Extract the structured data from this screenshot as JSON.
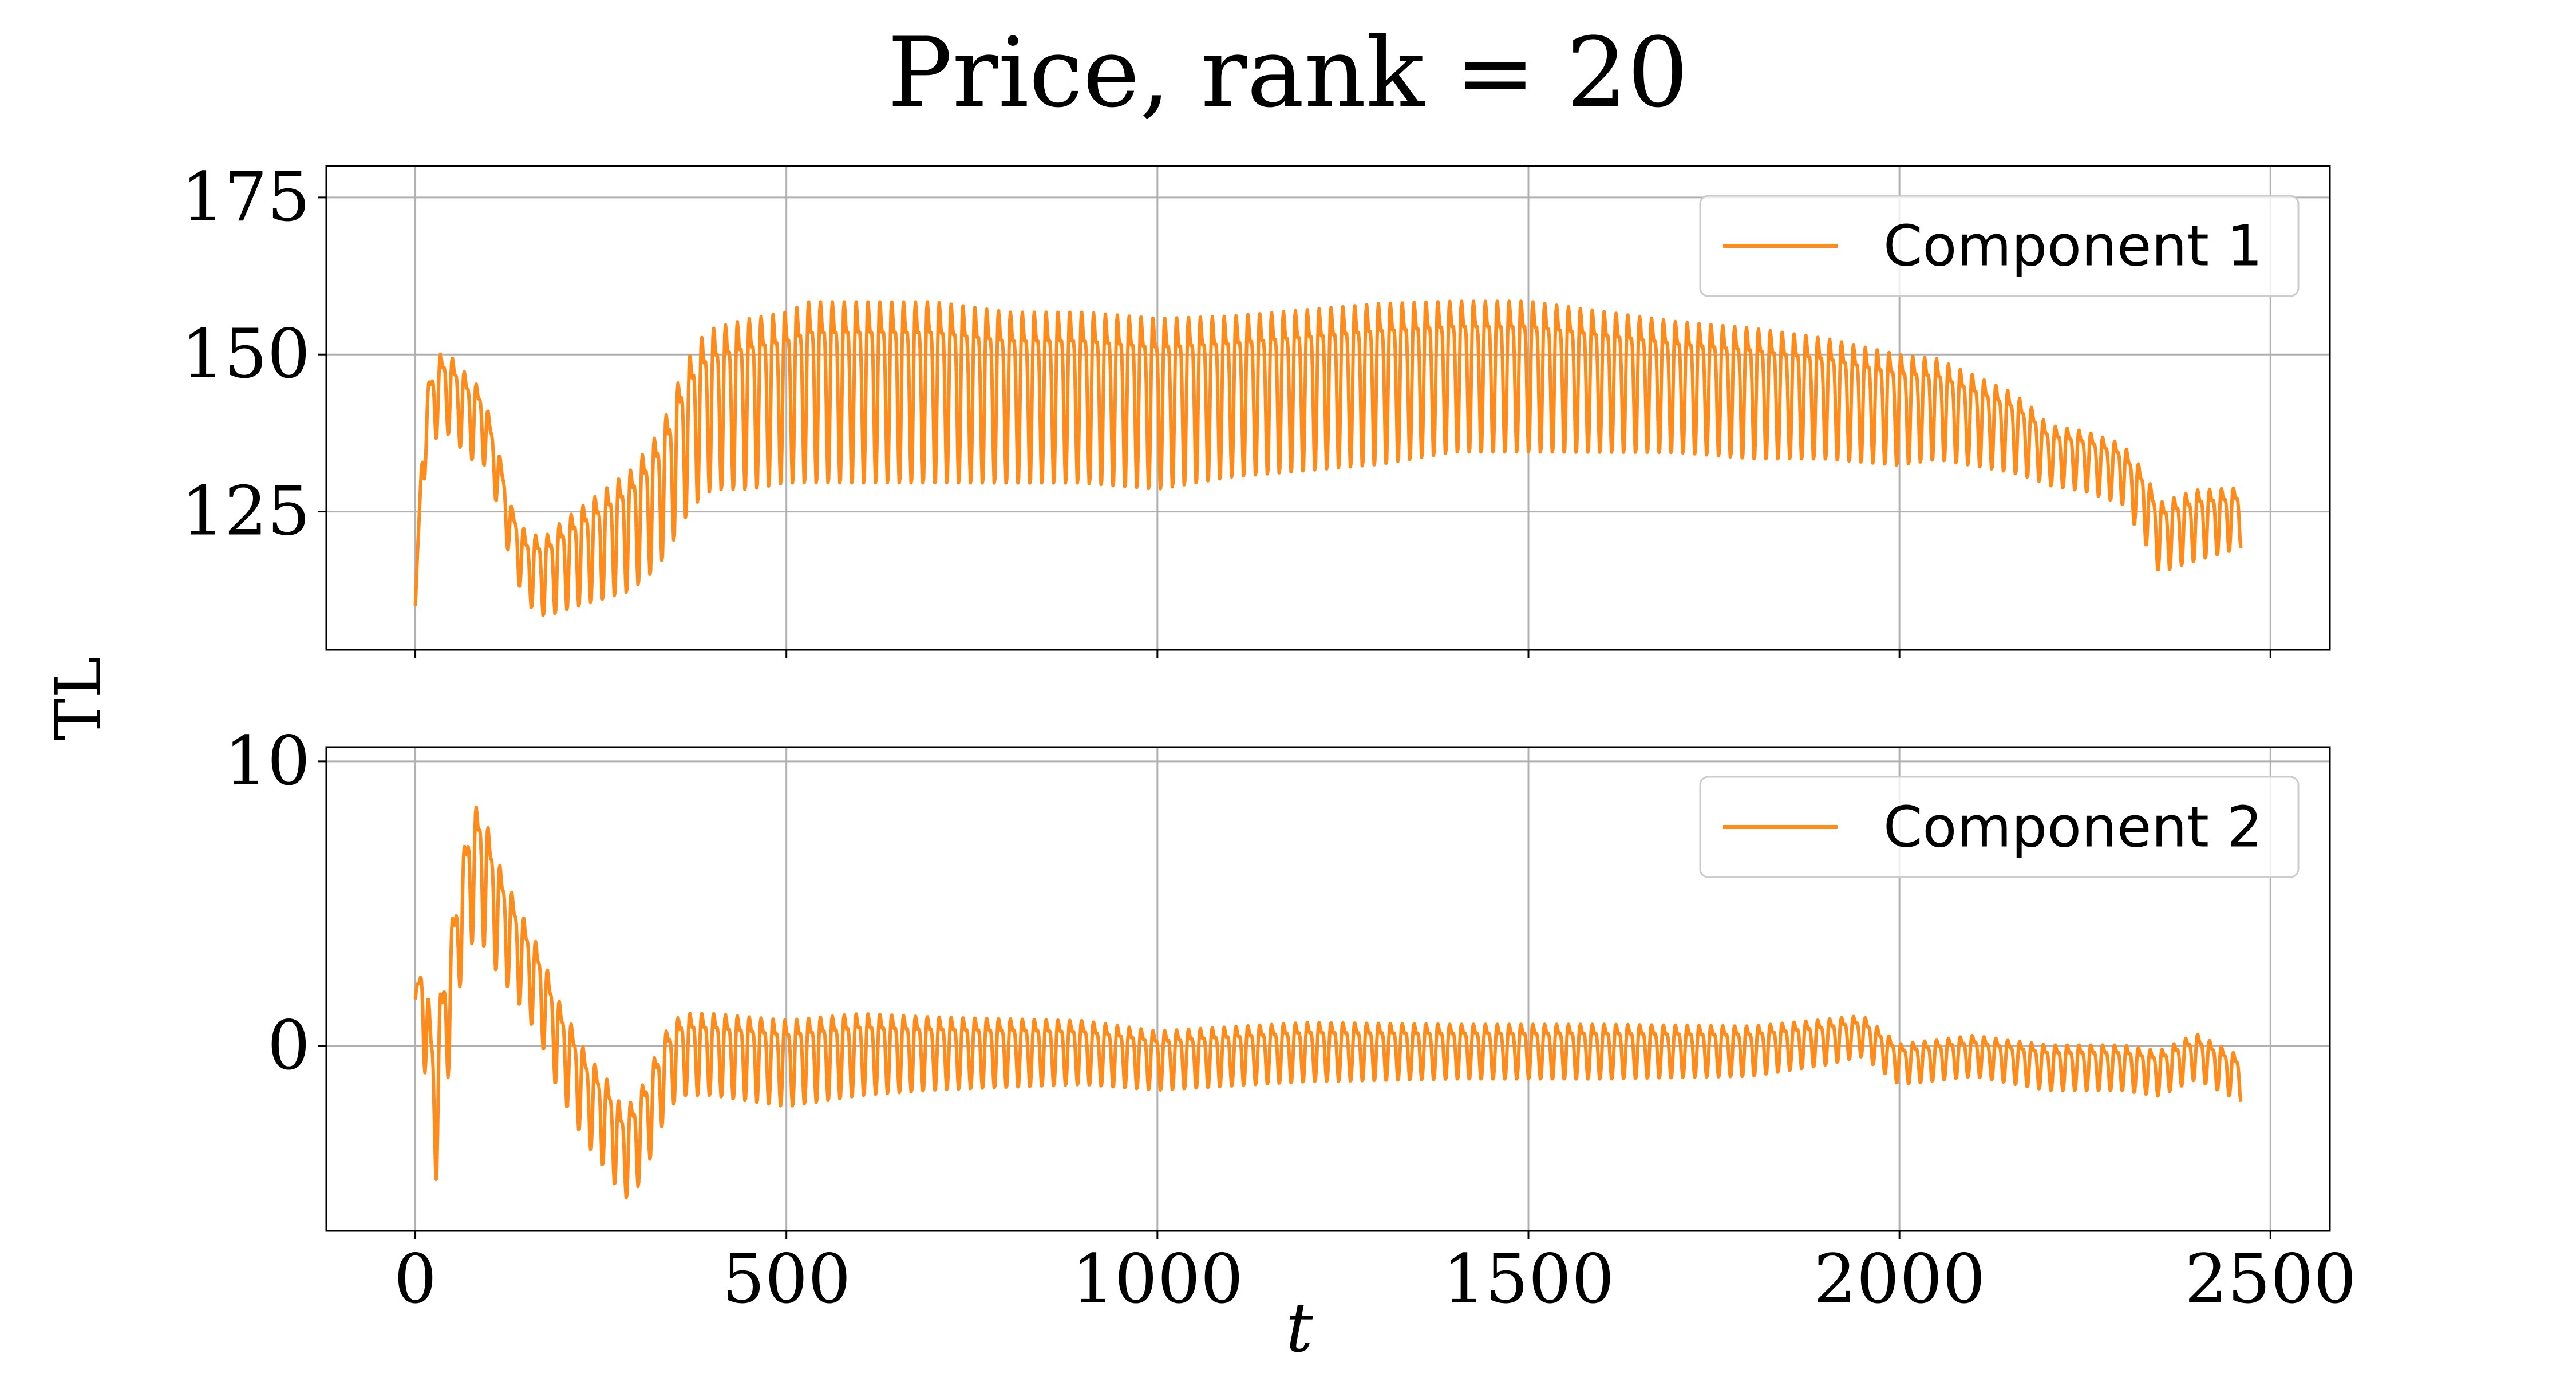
{
  "figure": {
    "title": "Price, rank = 20",
    "shared_ylabel": "TL",
    "xlabel": "t"
  },
  "colors": {
    "series": "#ff8c1a"
  },
  "chart_data": [
    {
      "type": "line",
      "legend": "Component 1",
      "legend_placement": "top-right",
      "grid": true,
      "x_range": [
        0,
        2460
      ],
      "xlim": [
        -120,
        2580
      ],
      "ylim": [
        103,
        180
      ],
      "xticks": [
        0,
        500,
        1000,
        1500,
        2000,
        2500
      ],
      "xtick_labels": [],
      "yticks": [
        125,
        150,
        175
      ],
      "ytick_labels": [
        "125",
        "150",
        "175"
      ],
      "x": [
        0,
        10,
        20,
        30,
        45,
        60,
        75,
        90,
        110,
        130,
        150,
        175,
        200,
        230,
        260,
        290,
        320,
        340,
        360,
        380,
        400,
        450,
        500,
        530,
        560,
        620,
        700,
        800,
        900,
        1000,
        1100,
        1200,
        1300,
        1400,
        1500,
        1600,
        1700,
        1800,
        1900,
        2000,
        2050,
        2100,
        2150,
        2180,
        2200,
        2250,
        2300,
        2330,
        2350,
        2400,
        2460
      ],
      "center": [
        110,
        135,
        142,
        145,
        145,
        143,
        141,
        140,
        132,
        122,
        117,
        116,
        118,
        120,
        122,
        124,
        128,
        132,
        138,
        142,
        144,
        145,
        146,
        147,
        147,
        147,
        147,
        146,
        146,
        145,
        146,
        147,
        148,
        149,
        149,
        148,
        147,
        146,
        145,
        143,
        143,
        141,
        139,
        137,
        135,
        134,
        132,
        127,
        122,
        124,
        125
      ],
      "amplitude": [
        0,
        6,
        8,
        8,
        8,
        8,
        8,
        7,
        6,
        6,
        7,
        8,
        9,
        10,
        11,
        12,
        13,
        14,
        15,
        16,
        16,
        17,
        17,
        18,
        18,
        18,
        18,
        17,
        17,
        17,
        16,
        16,
        16,
        15,
        15,
        14,
        13,
        13,
        12,
        11,
        10,
        9,
        8,
        7,
        6,
        6,
        6,
        7,
        7,
        7,
        6
      ],
      "period": 16
    },
    {
      "type": "line",
      "legend": "Component 2",
      "legend_placement": "top-right",
      "grid": true,
      "x_range": [
        0,
        2460
      ],
      "xlim": [
        -120,
        2580
      ],
      "ylim": [
        -6.5,
        10.5
      ],
      "xticks": [
        0,
        500,
        1000,
        1500,
        2000,
        2500
      ],
      "xtick_labels": [
        "0",
        "500",
        "1000",
        "1500",
        "2000",
        "2500"
      ],
      "yticks": [
        0,
        10
      ],
      "ytick_labels": [
        "0",
        "10"
      ],
      "x": [
        0,
        10,
        25,
        40,
        60,
        75,
        90,
        110,
        130,
        150,
        170,
        190,
        210,
        230,
        260,
        280,
        300,
        320,
        340,
        360,
        400,
        500,
        600,
        700,
        800,
        900,
        1000,
        1200,
        1400,
        1600,
        1800,
        1900,
        1950,
        2000,
        2100,
        2200,
        2300,
        2350,
        2400,
        2460
      ],
      "center": [
        1.5,
        2.0,
        -2.0,
        1.0,
        4.5,
        6.5,
        6.5,
        5.0,
        4.0,
        3.0,
        2.0,
        0.5,
        -0.5,
        -1.5,
        -2.5,
        -3.5,
        -3.0,
        -1.8,
        -0.5,
        0.0,
        0.0,
        -0.3,
        0.0,
        0.0,
        0.0,
        0.0,
        -0.3,
        0.0,
        0.0,
        0.0,
        0.0,
        0.3,
        0.5,
        -0.5,
        -0.2,
        -0.6,
        -0.6,
        -0.8,
        -0.2,
        -1.0
      ],
      "amplitude": [
        0.5,
        2.0,
        3.5,
        3.0,
        2.5,
        3.0,
        3.0,
        2.5,
        2.2,
        2.0,
        2.0,
        2.0,
        2.0,
        2.0,
        2.0,
        2.0,
        2.0,
        2.0,
        1.8,
        1.8,
        1.8,
        1.9,
        1.8,
        1.6,
        1.5,
        1.4,
        1.3,
        1.3,
        1.2,
        1.2,
        1.1,
        1.0,
        0.9,
        0.9,
        0.9,
        1.0,
        1.0,
        1.0,
        1.0,
        1.0
      ],
      "period": 16
    }
  ]
}
